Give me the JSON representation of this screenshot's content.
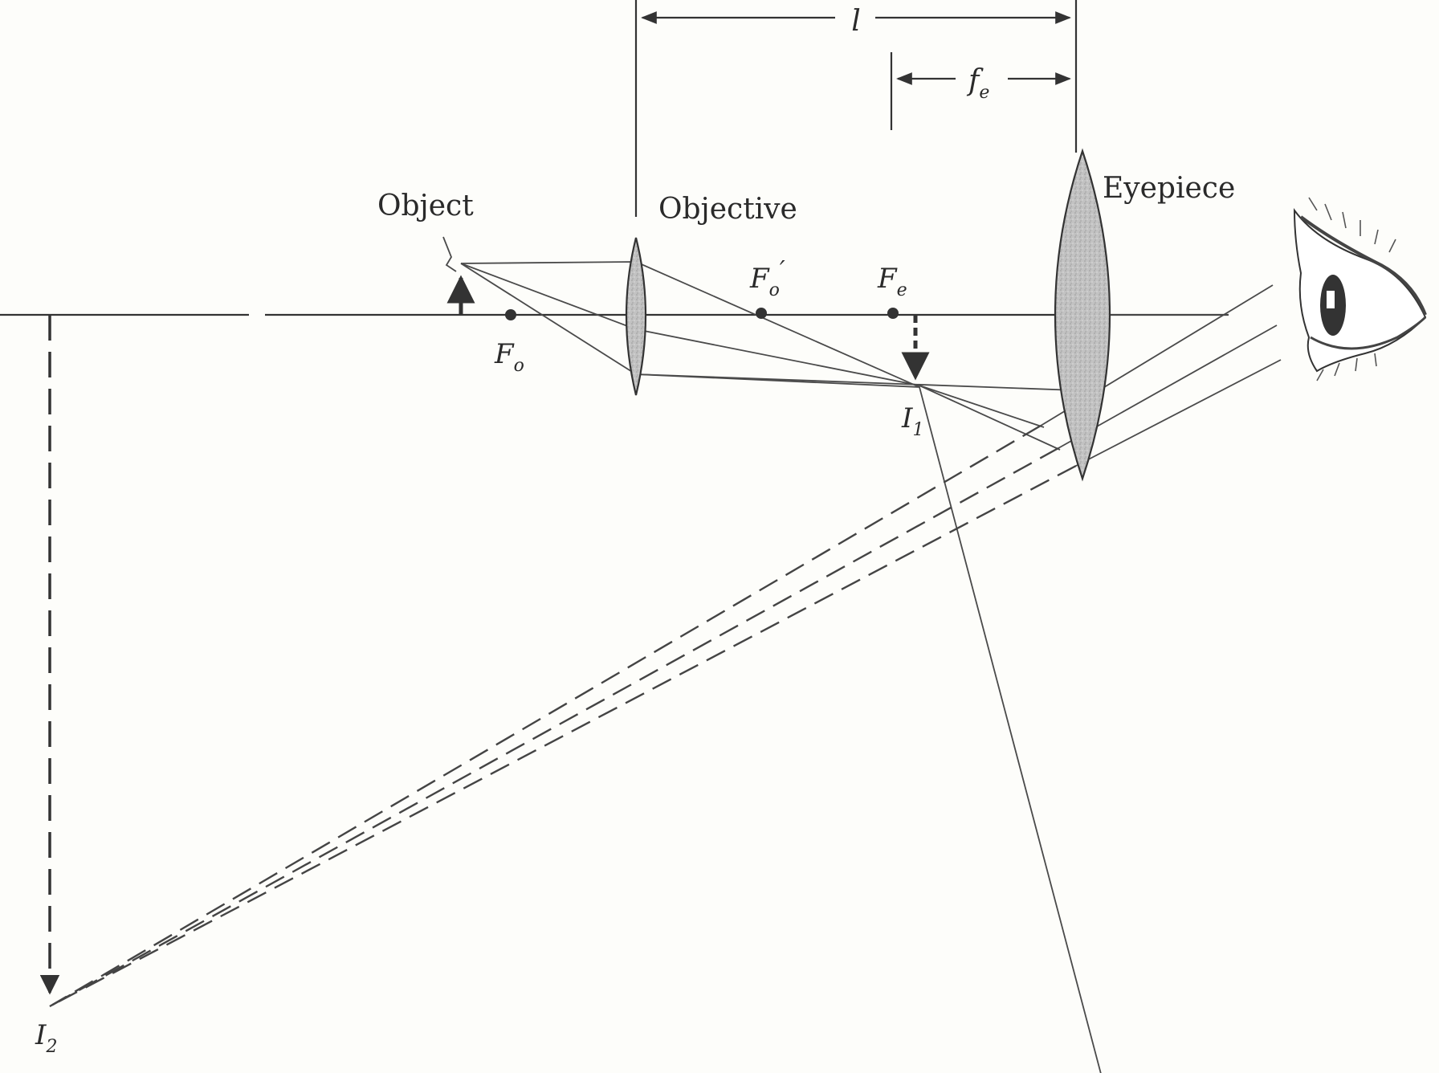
{
  "labels": {
    "object": "Object",
    "objective": "Objective",
    "eyepiece": "Eyepiece",
    "l": "l",
    "fe_main": "f",
    "fe_sub": "e",
    "Fo_main": "F",
    "Fo_sub": "o",
    "Fo_prime_main": "F",
    "Fo_prime_sub": "o",
    "Fo_prime_mark": "′",
    "Fe_main": "F",
    "Fe_sub": "e",
    "I1_main": "I",
    "I1_sub": "1",
    "I2_main": "I",
    "I2_sub": "2"
  },
  "colors": {
    "ink": "#333333",
    "lens_fill": "#bcbcbc",
    "paper": "#fdfdfa"
  },
  "icons": {
    "viewer": "eye-icon"
  }
}
